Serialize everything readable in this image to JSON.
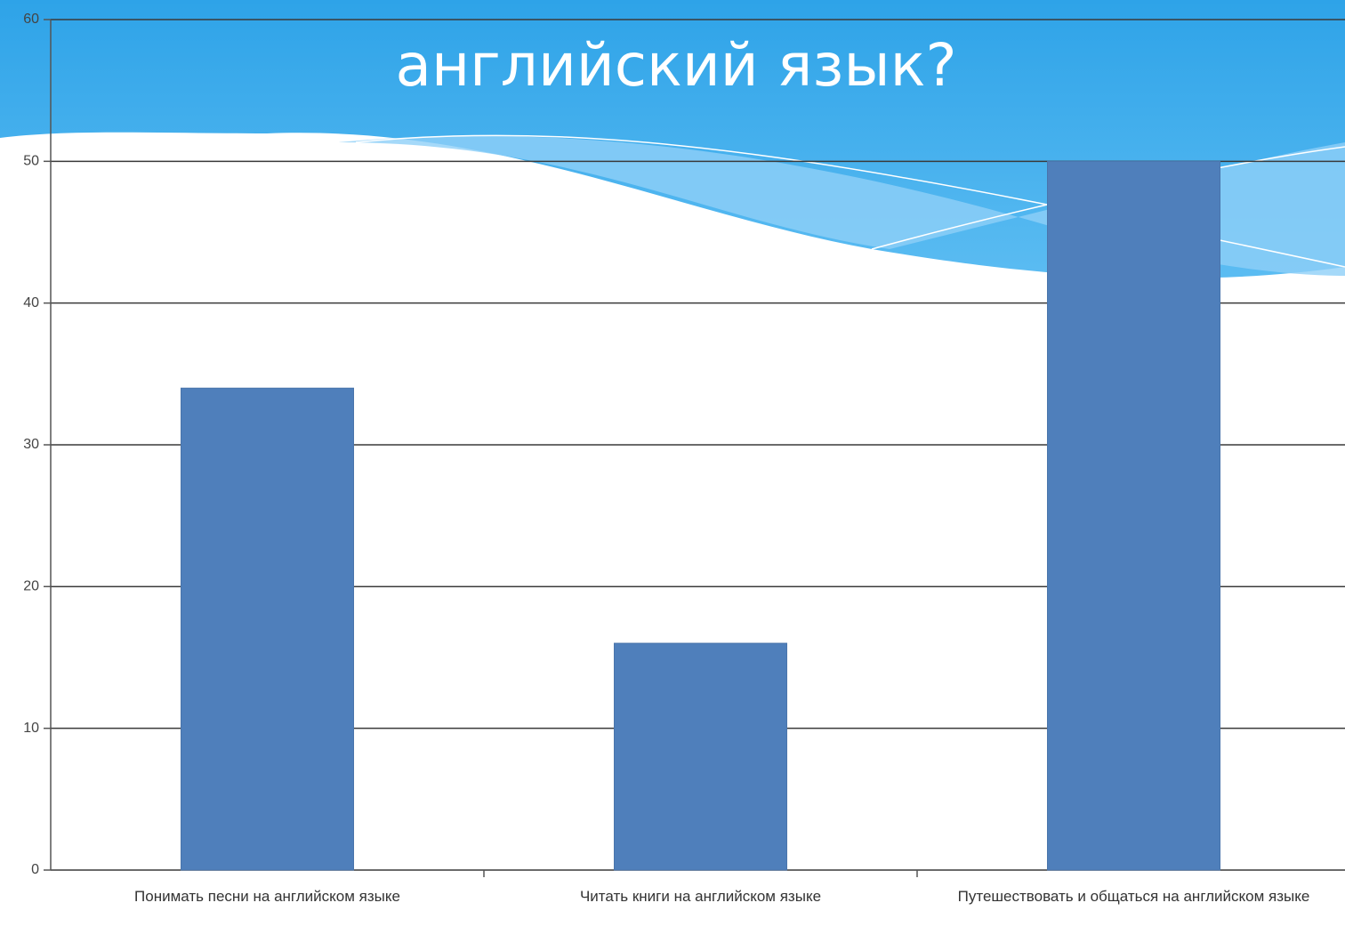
{
  "chart_data": {
    "type": "bar",
    "title": "английский язык?",
    "categories": [
      "Понимать песни на английском языке",
      "Читать книги на английском языке",
      "Путешествовать и общаться на английском языке"
    ],
    "values": [
      34,
      16,
      50
    ],
    "color": "#4f7fbb",
    "ylim": [
      0,
      60
    ],
    "yticks": [
      0,
      10,
      20,
      30,
      40,
      50,
      60
    ],
    "grid": true
  }
}
